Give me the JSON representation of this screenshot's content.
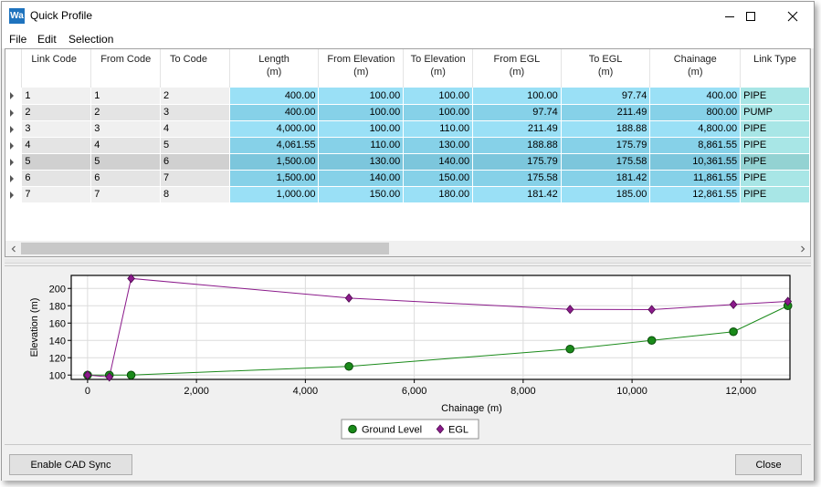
{
  "window": {
    "app_icon_text": "Wa",
    "title": "Quick Profile",
    "minimize_icon": "minimize-icon",
    "maximize_icon": "maximize-icon",
    "close_icon": "close-icon"
  },
  "menu": {
    "items": [
      {
        "label": "File"
      },
      {
        "label": "Edit"
      },
      {
        "label": "Selection"
      }
    ]
  },
  "grid": {
    "columns": [
      {
        "line1": "Link Code",
        "line2": ""
      },
      {
        "line1": "From Code",
        "line2": ""
      },
      {
        "line1": "To Code",
        "line2": ""
      },
      {
        "line1": "Length",
        "line2": "(m)"
      },
      {
        "line1": "From Elevation",
        "line2": "(m)"
      },
      {
        "line1": "To Elevation",
        "line2": "(m)"
      },
      {
        "line1": "From EGL",
        "line2": "(m)"
      },
      {
        "line1": "To EGL",
        "line2": "(m)"
      },
      {
        "line1": "Chainage",
        "line2": "(m)"
      },
      {
        "line1": "Link Type",
        "line2": ""
      }
    ],
    "rows": [
      {
        "link": "1",
        "from": "1",
        "to": "2",
        "length": "400.00",
        "from_elev": "100.00",
        "to_elev": "100.00",
        "from_egl": "100.00",
        "to_egl": "97.74",
        "chainage": "400.00",
        "type": "PIPE"
      },
      {
        "link": "2",
        "from": "2",
        "to": "3",
        "length": "400.00",
        "from_elev": "100.00",
        "to_elev": "100.00",
        "from_egl": "97.74",
        "to_egl": "211.49",
        "chainage": "800.00",
        "type": "PUMP"
      },
      {
        "link": "3",
        "from": "3",
        "to": "4",
        "length": "4,000.00",
        "from_elev": "100.00",
        "to_elev": "110.00",
        "from_egl": "211.49",
        "to_egl": "188.88",
        "chainage": "4,800.00",
        "type": "PIPE"
      },
      {
        "link": "4",
        "from": "4",
        "to": "5",
        "length": "4,061.55",
        "from_elev": "110.00",
        "to_elev": "130.00",
        "from_egl": "188.88",
        "to_egl": "175.79",
        "chainage": "8,861.55",
        "type": "PIPE"
      },
      {
        "link": "5",
        "from": "5",
        "to": "6",
        "length": "1,500.00",
        "from_elev": "130.00",
        "to_elev": "140.00",
        "from_egl": "175.79",
        "to_egl": "175.58",
        "chainage": "10,361.55",
        "type": "PIPE"
      },
      {
        "link": "6",
        "from": "6",
        "to": "7",
        "length": "1,500.00",
        "from_elev": "140.00",
        "to_elev": "150.00",
        "from_egl": "175.58",
        "to_egl": "181.42",
        "chainage": "11,861.55",
        "type": "PIPE"
      },
      {
        "link": "7",
        "from": "7",
        "to": "8",
        "length": "1,000.00",
        "from_elev": "150.00",
        "to_elev": "180.00",
        "from_egl": "181.42",
        "to_egl": "185.00",
        "chainage": "12,861.55",
        "type": "PIPE"
      }
    ],
    "selected_row": 4
  },
  "chart_data": {
    "type": "line",
    "xlabel": "Chainage (m)",
    "ylabel": "Elevation (m)",
    "xlim": [
      -300,
      12900
    ],
    "ylim": [
      95,
      215
    ],
    "xticks": [
      0,
      2000,
      4000,
      6000,
      8000,
      10000,
      12000
    ],
    "xtick_labels": [
      "0",
      "2,000",
      "4,000",
      "6,000",
      "8,000",
      "10,000",
      "12,000"
    ],
    "yticks": [
      100,
      120,
      140,
      160,
      180,
      200
    ],
    "ytick_labels": [
      "100",
      "120",
      "140",
      "160",
      "180",
      "200"
    ],
    "grid": true,
    "legend_position": "bottom-center",
    "series": [
      {
        "name": "Ground Level",
        "color": "#1a8a1a",
        "marker": "circle",
        "x": [
          0,
          400,
          800,
          4800,
          8861.55,
          10361.55,
          11861.55,
          12861.55
        ],
        "y": [
          100,
          100,
          100,
          110,
          130,
          140,
          150,
          180
        ]
      },
      {
        "name": "EGL",
        "color": "#8b1a8b",
        "marker": "diamond",
        "x": [
          0,
          400,
          800,
          4800,
          8861.55,
          10361.55,
          11861.55,
          12861.55
        ],
        "y": [
          100,
          97.74,
          211.49,
          188.88,
          175.79,
          175.58,
          181.42,
          185.0
        ]
      }
    ]
  },
  "buttons": {
    "cad_sync": "Enable CAD Sync",
    "close": "Close"
  }
}
